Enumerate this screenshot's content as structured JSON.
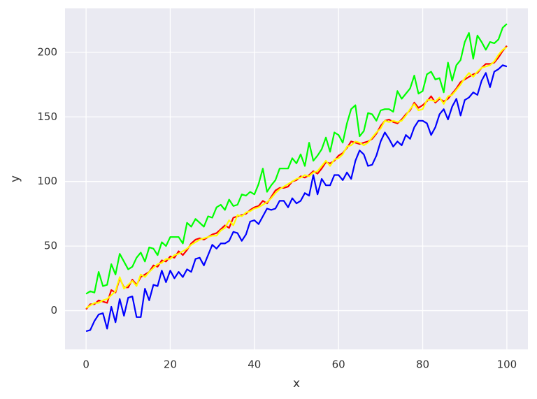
{
  "chart_data": {
    "type": "line",
    "xlabel": "x",
    "ylabel": "y",
    "x": [
      0,
      1,
      2,
      3,
      4,
      5,
      6,
      7,
      8,
      9,
      10,
      11,
      12,
      13,
      14,
      15,
      16,
      17,
      18,
      19,
      20,
      21,
      22,
      23,
      24,
      25,
      26,
      27,
      28,
      29,
      30,
      31,
      32,
      33,
      34,
      35,
      36,
      37,
      38,
      39,
      40,
      41,
      42,
      43,
      44,
      45,
      46,
      47,
      48,
      49,
      50,
      51,
      52,
      53,
      54,
      55,
      56,
      57,
      58,
      59,
      60,
      61,
      62,
      63,
      64,
      65,
      66,
      67,
      68,
      69,
      70,
      71,
      72,
      73,
      74,
      75,
      76,
      77,
      78,
      79,
      80,
      81,
      82,
      83,
      84,
      85,
      86,
      87,
      88,
      89,
      90,
      91,
      92,
      93,
      94,
      95,
      96,
      97,
      98,
      99,
      100
    ],
    "series": [
      {
        "color": "#ff0000",
        "values": [
          1,
          5,
          5,
          8,
          7,
          6,
          16,
          14,
          25,
          18,
          18,
          24,
          20,
          26,
          28,
          30,
          35,
          34,
          39,
          38,
          42,
          41,
          46,
          43,
          47,
          52,
          55,
          56,
          55,
          57,
          59,
          60,
          63,
          66,
          64,
          72,
          73,
          74,
          75,
          78,
          80,
          81,
          85,
          83,
          88,
          93,
          95,
          95,
          96,
          100,
          101,
          104,
          103,
          105,
          108,
          106,
          110,
          115,
          114,
          116,
          120,
          122,
          126,
          131,
          130,
          129,
          130,
          131,
          133,
          137,
          143,
          147,
          148,
          146,
          145,
          148,
          152,
          155,
          161,
          157,
          159,
          162,
          166,
          161,
          164,
          162,
          164,
          168,
          172,
          177,
          179,
          181,
          183,
          184,
          188,
          191,
          191,
          192,
          196,
          201,
          205
        ]
      },
      {
        "color": "#ffff00",
        "values": [
          2,
          4,
          6,
          6,
          8,
          9,
          12,
          15,
          26,
          17,
          20,
          23,
          19,
          28,
          26,
          30,
          33,
          36,
          37,
          40,
          40,
          43,
          44,
          46,
          48,
          51,
          53,
          55,
          56,
          57,
          58,
          58,
          62,
          64,
          70,
          66,
          74,
          73,
          76,
          77,
          79,
          80,
          82,
          84,
          87,
          91,
          94,
          96,
          98,
          100,
          102,
          103,
          105,
          104,
          107,
          108,
          112,
          116,
          112,
          117,
          118,
          121,
          127,
          128,
          131,
          130,
          128,
          130,
          134,
          138,
          141,
          147,
          146,
          147,
          146,
          147,
          151,
          156,
          160,
          155,
          156,
          163,
          163,
          162,
          165,
          160,
          166,
          167,
          171,
          175,
          180,
          184,
          181,
          185,
          188,
          189,
          190,
          193,
          198,
          202,
          204
        ]
      },
      {
        "color": "#00ff00",
        "values": [
          13,
          15,
          14,
          30,
          19,
          20,
          36,
          28,
          44,
          38,
          32,
          34,
          41,
          45,
          38,
          49,
          48,
          43,
          53,
          50,
          57,
          57,
          57,
          52,
          68,
          65,
          71,
          68,
          65,
          73,
          72,
          80,
          82,
          78,
          86,
          81,
          82,
          90,
          89,
          92,
          90,
          98,
          110,
          92,
          97,
          101,
          110,
          110,
          110,
          118,
          114,
          121,
          112,
          130,
          116,
          120,
          125,
          134,
          123,
          138,
          136,
          130,
          145,
          156,
          159,
          135,
          139,
          153,
          152,
          147,
          155,
          156,
          156,
          154,
          170,
          164,
          168,
          172,
          182,
          168,
          170,
          183,
          185,
          179,
          180,
          169,
          192,
          178,
          190,
          194,
          208,
          215,
          195,
          213,
          208,
          202,
          208,
          207,
          210,
          219,
          222
        ]
      },
      {
        "color": "#0000ff",
        "values": [
          -16,
          -15,
          -8,
          -3,
          -2,
          -14,
          3,
          -9,
          9,
          -4,
          10,
          11,
          -5,
          -5,
          17,
          8,
          20,
          19,
          31,
          22,
          31,
          25,
          30,
          26,
          32,
          30,
          40,
          41,
          35,
          43,
          51,
          48,
          52,
          52,
          54,
          61,
          60,
          54,
          59,
          69,
          70,
          67,
          73,
          79,
          78,
          79,
          85,
          85,
          80,
          87,
          83,
          85,
          91,
          89,
          105,
          90,
          102,
          97,
          97,
          105,
          105,
          101,
          107,
          102,
          116,
          124,
          121,
          112,
          113,
          120,
          131,
          138,
          133,
          127,
          131,
          128,
          136,
          133,
          142,
          147,
          147,
          145,
          136,
          142,
          152,
          156,
          148,
          158,
          164,
          151,
          163,
          165,
          169,
          167,
          178,
          184,
          173,
          185,
          187,
          190,
          189
        ]
      }
    ],
    "xlim": [
      -5,
      105
    ],
    "xticks": [
      0,
      20,
      40,
      60,
      80,
      100
    ],
    "ylim": [
      -30,
      234
    ],
    "yticks": [
      0,
      50,
      100,
      150,
      200
    ],
    "grid": true
  }
}
